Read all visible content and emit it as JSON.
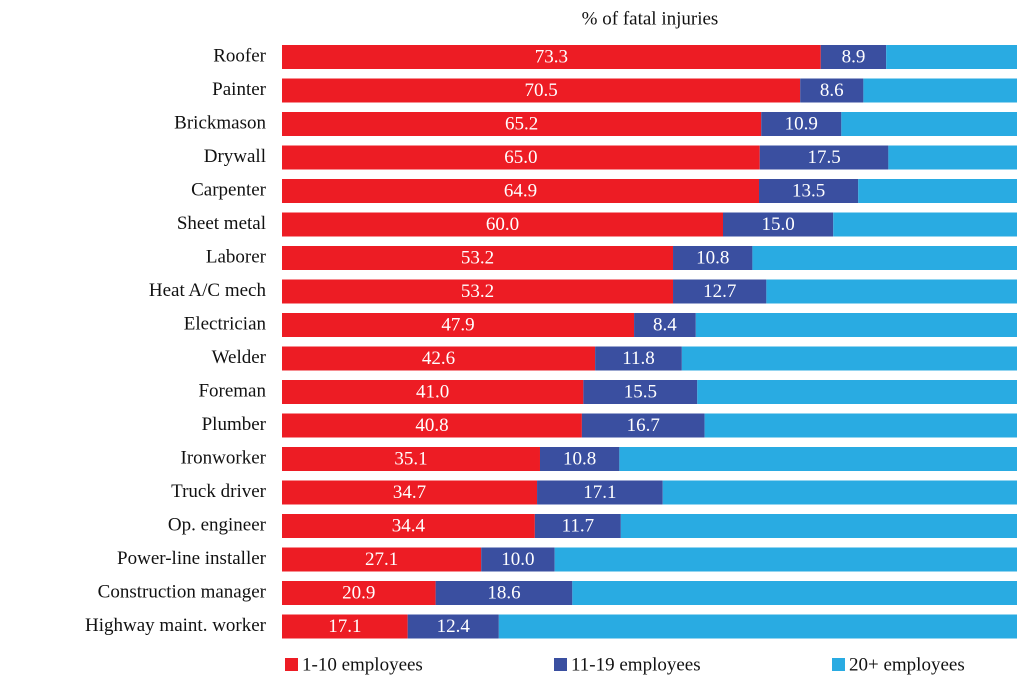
{
  "chart_data": {
    "type": "stacked_bar_horizontal",
    "title": "% of fatal injuries",
    "categories": [
      "Roofer",
      "Painter",
      "Brickmason",
      "Drywall",
      "Carpenter",
      "Sheet metal",
      "Laborer",
      "Heat A/C mech",
      "Electrician",
      "Welder",
      "Foreman",
      "Plumber",
      "Ironworker",
      "Truck driver",
      "Op. engineer",
      "Power-line installer",
      "Construction manager",
      "Highway maint. worker"
    ],
    "xlim": [
      0,
      100
    ],
    "series": [
      {
        "name": "1-10 employees",
        "color": "#ed1c24",
        "values": [
          73.3,
          70.5,
          65.2,
          65.0,
          64.9,
          60.0,
          53.2,
          53.2,
          47.9,
          42.6,
          41.0,
          40.8,
          35.1,
          34.7,
          34.4,
          27.1,
          20.9,
          17.1
        ],
        "value_labels": [
          "73.3",
          "70.5",
          "65.2",
          "65.0",
          "64.9",
          "60.0",
          "53.2",
          "53.2",
          "47.9",
          "42.6",
          "41.0",
          "40.8",
          "35.1",
          "34.7",
          "34.4",
          "27.1",
          "20.9",
          "17.1"
        ]
      },
      {
        "name": "11-19 employees",
        "color": "#3a4fa0",
        "values": [
          8.9,
          8.6,
          10.9,
          17.5,
          13.5,
          15.0,
          10.8,
          12.7,
          8.4,
          11.8,
          15.5,
          16.7,
          10.8,
          17.1,
          11.7,
          10.0,
          18.6,
          12.4
        ],
        "value_labels": [
          "8.9",
          "8.6",
          "10.9",
          "17.5",
          "13.5",
          "15.0",
          "10.8",
          "12.7",
          "8.4",
          "11.8",
          "15.5",
          "16.7",
          "10.8",
          "17.1",
          "11.7",
          "10.0",
          "18.6",
          "12.4"
        ]
      },
      {
        "name": "20+ employees",
        "color": "#29abe2",
        "values": [
          17.8,
          20.9,
          23.9,
          17.5,
          21.6,
          25.0,
          36.0,
          34.1,
          43.7,
          45.6,
          43.5,
          42.5,
          54.1,
          48.2,
          53.9,
          62.9,
          60.5,
          70.5
        ]
      }
    ]
  }
}
